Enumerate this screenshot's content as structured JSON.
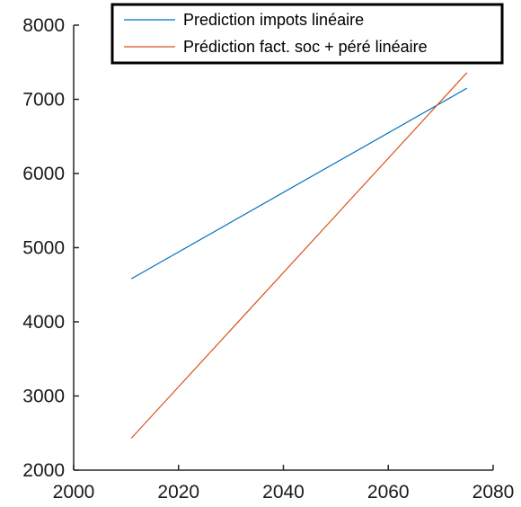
{
  "chart_data": {
    "type": "line",
    "xlim": [
      2000,
      2080
    ],
    "ylim": [
      2000,
      8000
    ],
    "x_ticks": [
      2000,
      2020,
      2040,
      2060,
      2080
    ],
    "y_ticks": [
      2000,
      3000,
      4000,
      5000,
      6000,
      7000,
      8000
    ],
    "x_tick_labels": [
      "2000",
      "2020",
      "2040",
      "2060",
      "2080"
    ],
    "y_tick_labels": [
      "2000",
      "3000",
      "4000",
      "5000",
      "6000",
      "7000",
      "8000"
    ],
    "grid": false,
    "legend_position": "top-right",
    "series": [
      {
        "name": "Prediction impots linéaire",
        "color": "#0072BD",
        "x": [
          2011,
          2075
        ],
        "y": [
          4580,
          7150
        ]
      },
      {
        "name": "Prédiction fact. soc + péré linéaire",
        "color": "#D95319",
        "x": [
          2011,
          2075
        ],
        "y": [
          2430,
          7360
        ]
      }
    ]
  }
}
